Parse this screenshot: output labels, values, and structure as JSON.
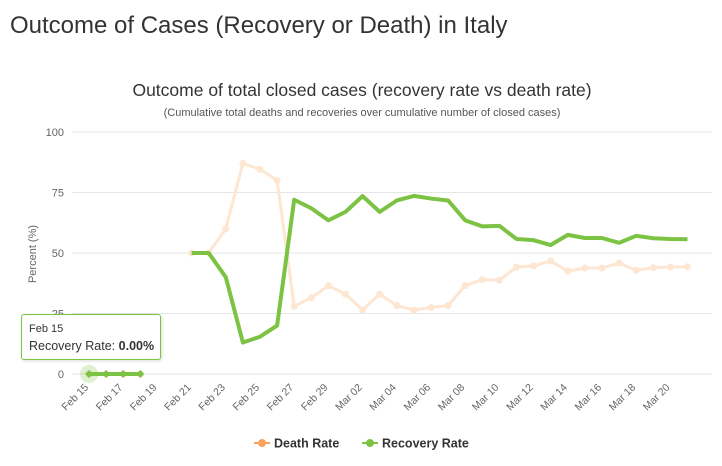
{
  "page": {
    "heading": "Outcome of Cases (Recovery or Death) in Italy"
  },
  "colors": {
    "death": "#f7a35c",
    "death_faded": "#fde6d2",
    "recovery": "#7cc243",
    "grid": "#e6e6e6",
    "axis_text": "#666666"
  },
  "chart_data": {
    "type": "line",
    "title": "Outcome of total closed cases (recovery rate vs death rate)",
    "subtitle": "(Cumulative total deaths and recoveries over cumulative number of closed cases)",
    "ylabel": "Percent (%)",
    "xlabel": "",
    "ylim": [
      0,
      100
    ],
    "yticks": [
      0,
      25,
      50,
      75,
      100
    ],
    "x": [
      "Feb 15",
      "Feb 16",
      "Feb 17",
      "Feb 18",
      "Feb 19",
      "Feb 20",
      "Feb 21",
      "Feb 22",
      "Feb 23",
      "Feb 24",
      "Feb 25",
      "Feb 26",
      "Feb 27",
      "Feb 28",
      "Feb 29",
      "Mar 01",
      "Mar 02",
      "Mar 03",
      "Mar 04",
      "Mar 05",
      "Mar 06",
      "Mar 07",
      "Mar 08",
      "Mar 09",
      "Mar 10",
      "Mar 11",
      "Mar 12",
      "Mar 13",
      "Mar 14",
      "Mar 15",
      "Mar 16",
      "Mar 17",
      "Mar 18",
      "Mar 19",
      "Mar 20",
      "Mar 21"
    ],
    "xtick_labels": [
      "Feb 15",
      "Feb 17",
      "Feb 19",
      "Feb 21",
      "Feb 23",
      "Feb 25",
      "Feb 27",
      "Feb 29",
      "Mar 02",
      "Mar 04",
      "Mar 06",
      "Mar 08",
      "Mar 10",
      "Mar 12",
      "Mar 14",
      "Mar 16",
      "Mar 18",
      "Mar 20"
    ],
    "series": [
      {
        "name": "Death Rate",
        "color": "#f7a35c",
        "values": [
          0,
          0,
          0,
          0,
          null,
          null,
          50,
          50,
          60,
          87,
          84.6,
          80,
          28,
          31.5,
          36.5,
          33,
          26.5,
          33,
          28.3,
          26.4,
          27.5,
          28.3,
          36.5,
          39,
          38.8,
          44.2,
          44.7,
          46.7,
          42.5,
          43.8,
          43.8,
          45.8,
          42.9,
          43.9,
          44.2,
          44.3
        ]
      },
      {
        "name": "Recovery Rate",
        "color": "#7cc243",
        "values": [
          0,
          0,
          0,
          0,
          null,
          null,
          50,
          50,
          40,
          13,
          15.4,
          20,
          72,
          68.5,
          63.5,
          67,
          73.5,
          67,
          71.7,
          73.6,
          72.5,
          71.7,
          63.5,
          61,
          61.2,
          55.8,
          55.3,
          53.3,
          57.5,
          56.2,
          56.2,
          54.2,
          57.1,
          56.1,
          55.8,
          55.7
        ]
      }
    ],
    "legend": {
      "position": "bottom-center",
      "items": [
        "Death Rate",
        "Recovery Rate"
      ]
    },
    "grid": true
  },
  "tooltip": {
    "date": "Feb 15",
    "label": "Recovery Rate:",
    "value": "0.00%"
  }
}
